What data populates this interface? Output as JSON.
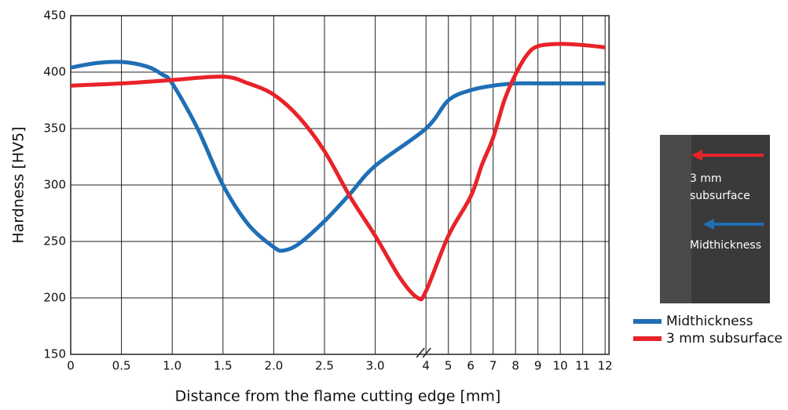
{
  "chart_data": {
    "type": "line",
    "xlabel": "Distance from the flame cutting edge [mm]",
    "ylabel": "Hardness [HV5]",
    "xlim": [
      0,
      12
    ],
    "ylim": [
      150,
      450
    ],
    "xticks": [
      0,
      0.5,
      {
        "value": 1,
        "label": "1.0"
      },
      1.5,
      {
        "value": 2,
        "label": "2.0"
      },
      2.5,
      {
        "value": 3,
        "label": "3.0"
      },
      4,
      5,
      6,
      7,
      8,
      9,
      10,
      11,
      12
    ],
    "yticks": [
      150,
      200,
      250,
      300,
      350,
      400,
      450
    ],
    "grid": true,
    "legend": "bottom-right",
    "series": [
      {
        "name": "Midthickness",
        "color": "#1f6fb5",
        "x": [
          0,
          0.25,
          0.5,
          0.75,
          0.9,
          1,
          1.25,
          1.5,
          1.75,
          2,
          2.1,
          2.25,
          2.5,
          2.75,
          3,
          4,
          5,
          6,
          7,
          8,
          9,
          10,
          11,
          12
        ],
        "values": [
          404,
          408,
          409,
          405,
          398,
          390,
          350,
          300,
          265,
          245,
          242,
          248,
          268,
          292,
          317,
          350,
          375,
          384,
          388,
          390,
          390,
          390,
          390,
          390
        ]
      },
      {
        "name": "3 mm subsurface",
        "color": "#e8232a",
        "x": [
          0,
          0.5,
          1,
          1.5,
          1.75,
          2,
          2.25,
          2.5,
          2.75,
          3,
          3.5,
          3.84,
          4,
          5,
          6,
          6.5,
          7,
          7.5,
          8,
          8.5,
          9,
          10,
          11,
          12
        ],
        "values": [
          388,
          390,
          393,
          396,
          390,
          380,
          360,
          330,
          290,
          255,
          217,
          200,
          206,
          255,
          290,
          318,
          342,
          375,
          398,
          415,
          423,
          425,
          424,
          422
        ]
      }
    ],
    "inset_labels": [
      "3 mm",
      "subsurface",
      "Midthickness"
    ]
  }
}
